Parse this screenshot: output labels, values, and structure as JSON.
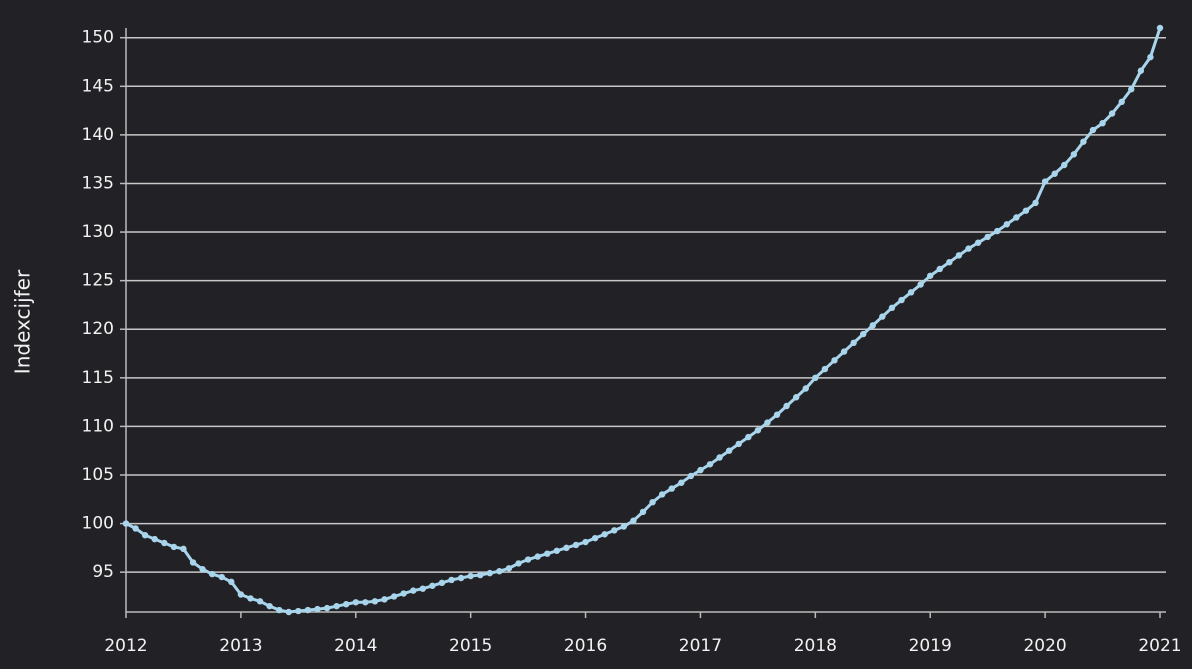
{
  "chart_data": {
    "type": "line",
    "y_label": "Indexcijfer",
    "categories": [
      "2012",
      null,
      null,
      null,
      null,
      null,
      null,
      null,
      null,
      null,
      null,
      null,
      "2013",
      null,
      null,
      null,
      null,
      null,
      null,
      null,
      null,
      null,
      null,
      null,
      "2014",
      null,
      null,
      null,
      null,
      null,
      null,
      null,
      null,
      null,
      null,
      null,
      "2015",
      null,
      null,
      null,
      null,
      null,
      null,
      null,
      null,
      null,
      null,
      null,
      "2016",
      null,
      null,
      null,
      null,
      null,
      null,
      null,
      null,
      null,
      null,
      null,
      "2017",
      null,
      null,
      null,
      null,
      null,
      null,
      null,
      null,
      null,
      null,
      null,
      "2018",
      null,
      null,
      null,
      null,
      null,
      null,
      null,
      null,
      null,
      null,
      null,
      "2019",
      null,
      null,
      null,
      null,
      null,
      null,
      null,
      null,
      null,
      null,
      null,
      "2020",
      null,
      null,
      null,
      null,
      null,
      null,
      null,
      null,
      null,
      null,
      null,
      "2021"
    ],
    "series": [
      {
        "color": "#a9d5ec",
        "values": [
          100,
          99.5,
          98.8,
          98.4,
          98.0,
          97.6,
          97.4,
          96.0,
          95.3,
          94.8,
          94.5,
          94.0,
          92.7,
          92.3,
          92.0,
          91.5,
          91.1,
          90.9,
          91.0,
          91.1,
          91.2,
          91.3,
          91.5,
          91.7,
          91.9,
          91.9,
          92.0,
          92.2,
          92.5,
          92.8,
          93.1,
          93.3,
          93.6,
          93.9,
          94.2,
          94.4,
          94.6,
          94.7,
          94.9,
          95.1,
          95.4,
          95.9,
          96.3,
          96.6,
          96.9,
          97.2,
          97.5,
          97.8,
          98.1,
          98.5,
          98.9,
          99.3,
          99.7,
          100.3,
          101.2,
          102.2,
          103.0,
          103.6,
          104.2,
          104.9,
          105.5,
          106.1,
          106.8,
          107.5,
          108.2,
          108.9,
          109.6,
          110.4,
          111.2,
          112.1,
          113.0,
          113.9,
          115.0,
          115.9,
          116.8,
          117.7,
          118.6,
          119.5,
          120.4,
          121.3,
          122.2,
          123.0,
          123.8,
          124.6,
          125.5,
          126.2,
          126.9,
          127.6,
          128.3,
          128.9,
          129.5,
          130.1,
          130.8,
          131.5,
          132.2,
          133.0,
          135.2,
          136.0,
          136.9,
          138.0,
          139.3,
          140.5,
          141.2,
          142.2,
          143.4,
          144.7,
          146.6,
          148.0,
          151.0
        ]
      }
    ],
    "ylim": [
      90.9,
      151
    ],
    "yticks": [
      95,
      100,
      105,
      110,
      115,
      120,
      125,
      130,
      135,
      140,
      145,
      150
    ],
    "grid": true
  }
}
